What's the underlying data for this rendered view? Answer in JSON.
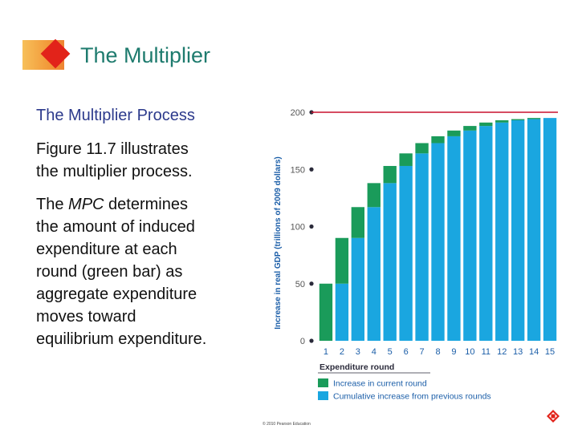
{
  "header": {
    "title": "The Multiplier"
  },
  "content": {
    "subtitle": "The Multiplier Process",
    "para1_lines": [
      "Figure 11.7 illustrates",
      "the multiplier process."
    ],
    "para2_lines": [
      "The MPC determines",
      "the amount of induced",
      "expenditure at each",
      "round (green bar) as",
      "aggregate expenditure",
      "moves toward",
      "equilibrium expenditure."
    ],
    "italic_word": "MPC"
  },
  "footer": {
    "copyright": "© 2010 Pearson Education"
  },
  "icons": {
    "corner": "pearson-logo-icon"
  },
  "colors": {
    "title": "#1e7b6e",
    "subtitle": "#2c3a8c",
    "green": "#1a9b5a",
    "blue": "#1aa6e0",
    "red_line": "#c8102e"
  },
  "chart_data": {
    "type": "bar",
    "stacked": true,
    "ylabel": "Increase in real GDP (trillions of 2009 dollars)",
    "xlabel": "Expenditure round",
    "categories": [
      "1",
      "2",
      "3",
      "4",
      "5",
      "6",
      "7",
      "8",
      "9",
      "10",
      "11",
      "12",
      "13",
      "14",
      "15"
    ],
    "yticks": [
      0,
      50,
      100,
      150,
      200
    ],
    "ylim": [
      0,
      200
    ],
    "reference_line": 200,
    "series": [
      {
        "name": "Cumulative increase from previous rounds",
        "values": [
          0,
          50,
          90,
          117,
          138,
          153,
          164,
          173,
          179,
          184,
          188,
          191,
          193,
          194,
          195
        ]
      },
      {
        "name": "Increase in current round",
        "values": [
          50,
          40,
          27,
          21,
          15,
          11,
          9,
          6,
          5,
          4,
          3,
          2,
          1,
          1,
          0
        ]
      }
    ]
  }
}
